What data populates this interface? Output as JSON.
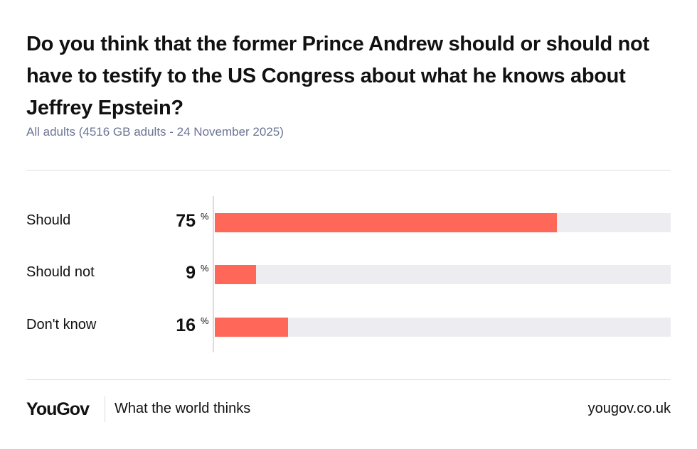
{
  "chart_data": {
    "type": "bar",
    "orientation": "horizontal",
    "title": "Do you think that the former Prince Andrew should or should not have to testify to the US Congress about what he knows about Jeffrey Epstein?",
    "subtitle": "All adults (4516 GB adults - 24 November 2025)",
    "categories": [
      "Should",
      "Should not",
      "Don't know"
    ],
    "values": [
      75,
      9,
      16
    ],
    "unit": "%",
    "xlim": [
      0,
      100
    ],
    "bar_color": "#ff6758",
    "track_color": "#ededf1"
  },
  "footer": {
    "logo": "YouGov",
    "tagline": "What the world thinks",
    "url": "yougov.co.uk"
  }
}
